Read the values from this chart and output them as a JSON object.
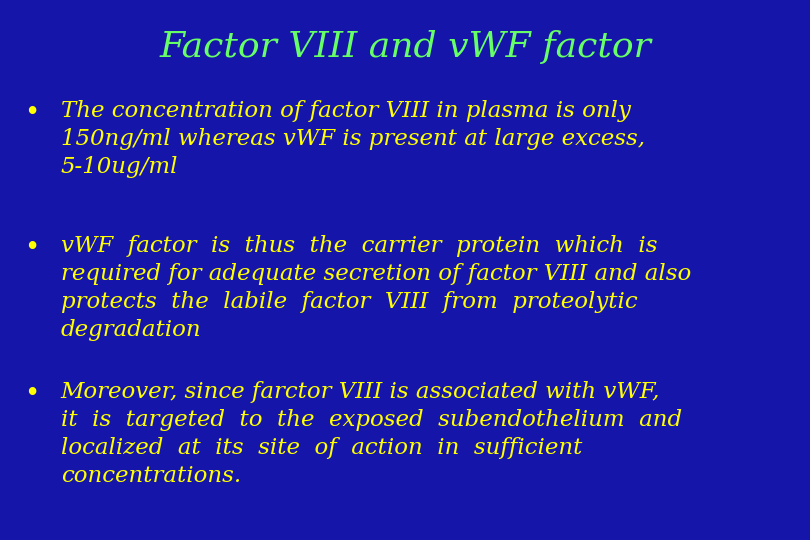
{
  "title": "Factor VIII and vWF factor",
  "title_color": "#66FF66",
  "background_color": "#1515AA",
  "bullet_color": "#FFFF00",
  "bullet_points": [
    "The concentration of factor VIII in plasma is only\n150ng/ml whereas vWF is present at large excess,\n5-10ug/ml",
    "vWF  factor  is  thus  the  carrier  protein  which  is\nrequired for adequate secretion of factor VIII and also\nprotects  the  labile  factor  VIII  from  proteolytic\ndegradation",
    "Moreover, since farctor VIII is associated with vWF,\nit  is  targeted  to  the  exposed  subendothelium  and\nlocalized  at  its  site  of  action  in  sufficient\nconcentrations."
  ],
  "title_fontsize": 26,
  "bullet_fontsize": 16.5,
  "figwidth": 8.1,
  "figheight": 5.4,
  "dpi": 100
}
